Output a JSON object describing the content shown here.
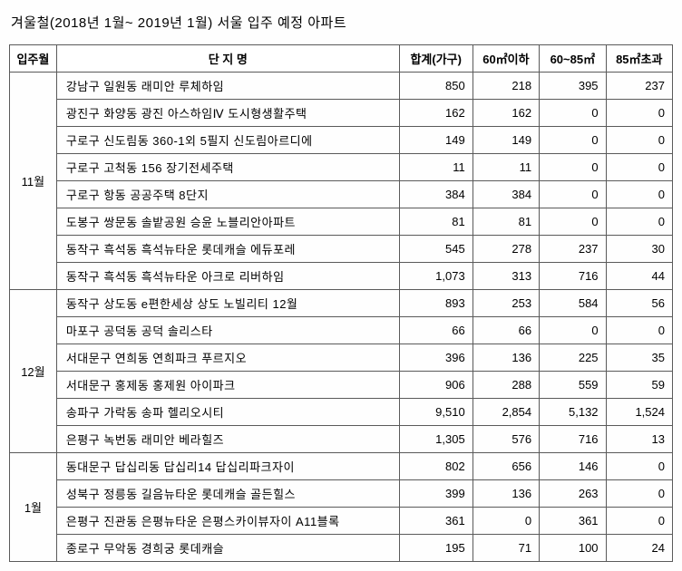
{
  "title": "겨울철(2018년 1월~ 2019년 1월) 서울 입주 예정 아파트",
  "headers": {
    "month": "입주월",
    "name": "단 지 명",
    "total": "합계(가구)",
    "c1": "60㎡이하",
    "c2": "60~85㎡",
    "c3": "85㎡초과"
  },
  "groups": [
    {
      "month": "11월",
      "rows": [
        {
          "name": "강남구 일원동 래미안 루체하임",
          "total": "850",
          "c1": "218",
          "c2": "395",
          "c3": "237"
        },
        {
          "name": "광진구 화양동 광진 아스하임Ⅳ 도시형생활주택",
          "total": "162",
          "c1": "162",
          "c2": "0",
          "c3": "0"
        },
        {
          "name": "구로구 신도림동 360-1외 5필지 신도림아르디에",
          "total": "149",
          "c1": "149",
          "c2": "0",
          "c3": "0"
        },
        {
          "name": "구로구 고척동 156 장기전세주택",
          "total": "11",
          "c1": "11",
          "c2": "0",
          "c3": "0"
        },
        {
          "name": "구로구 항동 공공주택 8단지",
          "total": "384",
          "c1": "384",
          "c2": "0",
          "c3": "0"
        },
        {
          "name": "도봉구 쌍문동 솔밭공원 승윤 노블리안아파트",
          "total": "81",
          "c1": "81",
          "c2": "0",
          "c3": "0"
        },
        {
          "name": "동작구 흑석동 흑석뉴타운 롯데캐슬 에듀포레",
          "total": "545",
          "c1": "278",
          "c2": "237",
          "c3": "30"
        },
        {
          "name": "동작구 흑석동 흑석뉴타운 아크로 리버하임",
          "total": "1,073",
          "c1": "313",
          "c2": "716",
          "c3": "44"
        }
      ]
    },
    {
      "month": "12월",
      "rows": [
        {
          "name": "동작구 상도동 e편한세상 상도 노빌리티 12월",
          "total": "893",
          "c1": "253",
          "c2": "584",
          "c3": "56"
        },
        {
          "name": "마포구 공덕동 공덕 솔리스타",
          "total": "66",
          "c1": "66",
          "c2": "0",
          "c3": "0"
        },
        {
          "name": "서대문구 연희동 연희파크 푸르지오",
          "total": "396",
          "c1": "136",
          "c2": "225",
          "c3": "35"
        },
        {
          "name": "서대문구 홍제동 홍제원 아이파크",
          "total": "906",
          "c1": "288",
          "c2": "559",
          "c3": "59"
        },
        {
          "name": "송파구 가락동 송파 헬리오시티",
          "total": "9,510",
          "c1": "2,854",
          "c2": "5,132",
          "c3": "1,524"
        },
        {
          "name": "은평구 녹번동 래미안 베라힐즈",
          "total": "1,305",
          "c1": "576",
          "c2": "716",
          "c3": "13"
        }
      ]
    },
    {
      "month": "1월",
      "rows": [
        {
          "name": "동대문구 답십리동 답십리14 답십리파크자이",
          "total": "802",
          "c1": "656",
          "c2": "146",
          "c3": "0"
        },
        {
          "name": "성북구 정릉동 길음뉴타운 롯데캐슬 골든힐스",
          "total": "399",
          "c1": "136",
          "c2": "263",
          "c3": "0"
        },
        {
          "name": "은평구 진관동 은평뉴타운 은평스카이뷰자이 A11블록",
          "total": "361",
          "c1": "0",
          "c2": "361",
          "c3": "0"
        },
        {
          "name": "종로구 무악동 경희궁 롯데캐슬",
          "total": "195",
          "c1": "71",
          "c2": "100",
          "c3": "24"
        }
      ]
    }
  ]
}
